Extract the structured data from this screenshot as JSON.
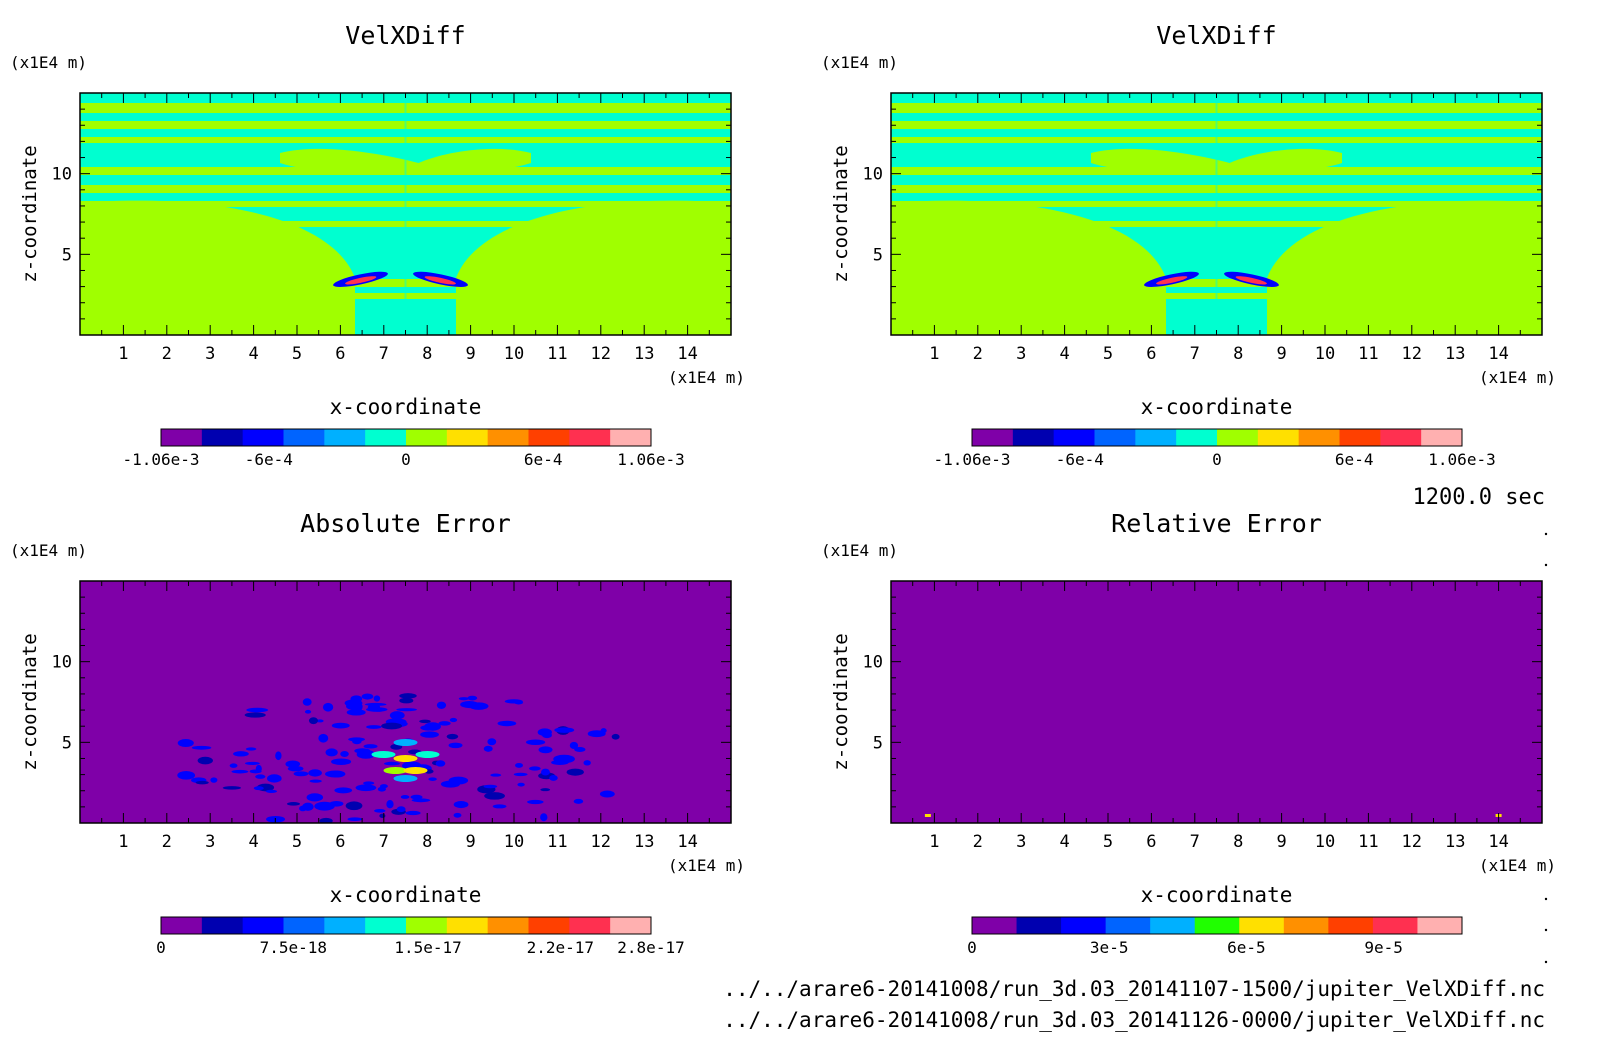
{
  "time_label": "1200.0 sec",
  "files": [
    "../../arare6-20141008/run_3d.03_20141107-1500/jupiter_VelXDiff.nc",
    "../../arare6-20141008/run_3d.03_20141126-0000/jupiter_VelXDiff.nc"
  ],
  "colors": {
    "purple": "#7f00a8",
    "darkblue": "#0000b0",
    "blue": "#0000ff",
    "midblue": "#0064ff",
    "skyblue": "#00b0ff",
    "cyan": "#00ffd0",
    "green": "#a0ff00",
    "brightgreen": "#20ff00",
    "yellow": "#ffe000",
    "orange": "#ff9000",
    "redorange": "#ff4000",
    "red": "#ff3050",
    "pink": "#ffb0b0"
  },
  "chart_data": [
    {
      "type": "heatmap",
      "title": "VelXDiff",
      "xlabel": "x-coordinate",
      "ylabel": "z-coordinate",
      "x_unit": "(x1E4 m)",
      "y_unit": "(x1E4 m)",
      "xlim": [
        0,
        15
      ],
      "ylim": [
        0,
        15
      ],
      "xticks": [
        "1",
        "2",
        "3",
        "4",
        "5",
        "6",
        "7",
        "8",
        "9",
        "10",
        "11",
        "12",
        "13",
        "14"
      ],
      "yticks": [
        "5",
        "10"
      ],
      "colorbar": {
        "colors": [
          "#7f00a8",
          "#0000b0",
          "#0000ff",
          "#0064ff",
          "#00b0ff",
          "#00ffd0",
          "#a0ff00",
          "#ffe000",
          "#ff9000",
          "#ff4000",
          "#ff3050",
          "#ffb0b0"
        ],
        "labels": [
          "-1.06e-3",
          "-6e-4",
          "0",
          "6e-4",
          "1.06e-3"
        ]
      },
      "background": "#00ffd0"
    },
    {
      "type": "heatmap",
      "title": "VelXDiff",
      "xlabel": "x-coordinate",
      "ylabel": "z-coordinate",
      "x_unit": "(x1E4 m)",
      "y_unit": "(x1E4 m)",
      "xlim": [
        0,
        15
      ],
      "ylim": [
        0,
        15
      ],
      "xticks": [
        "1",
        "2",
        "3",
        "4",
        "5",
        "6",
        "7",
        "8",
        "9",
        "10",
        "11",
        "12",
        "13",
        "14"
      ],
      "yticks": [
        "5",
        "10"
      ],
      "colorbar": {
        "colors": [
          "#7f00a8",
          "#0000b0",
          "#0000ff",
          "#0064ff",
          "#00b0ff",
          "#00ffd0",
          "#a0ff00",
          "#ffe000",
          "#ff9000",
          "#ff4000",
          "#ff3050",
          "#ffb0b0"
        ],
        "labels": [
          "-1.06e-3",
          "-6e-4",
          "0",
          "6e-4",
          "1.06e-3"
        ]
      },
      "background": "#00ffd0"
    },
    {
      "type": "heatmap",
      "title": "Absolute Error",
      "xlabel": "x-coordinate",
      "ylabel": "z-coordinate",
      "x_unit": "(x1E4 m)",
      "y_unit": "(x1E4 m)",
      "xlim": [
        0,
        15
      ],
      "ylim": [
        0,
        15
      ],
      "xticks": [
        "1",
        "2",
        "3",
        "4",
        "5",
        "6",
        "7",
        "8",
        "9",
        "10",
        "11",
        "12",
        "13",
        "14"
      ],
      "yticks": [
        "5",
        "10"
      ],
      "colorbar": {
        "colors": [
          "#7f00a8",
          "#0000b0",
          "#0000ff",
          "#0064ff",
          "#00b0ff",
          "#00ffd0",
          "#a0ff00",
          "#ffe000",
          "#ff9000",
          "#ff4000",
          "#ff3050",
          "#ffb0b0"
        ],
        "labels": [
          "0",
          "7.5e-18",
          "1.5e-17",
          "2.2e-17",
          "2.8e-17"
        ]
      },
      "background": "#7f00a8"
    },
    {
      "type": "heatmap",
      "title": "Relative Error",
      "xlabel": "x-coordinate",
      "ylabel": "z-coordinate",
      "x_unit": "(x1E4 m)",
      "y_unit": "(x1E4 m)",
      "xlim": [
        0,
        15
      ],
      "ylim": [
        0,
        15
      ],
      "xticks": [
        "1",
        "2",
        "3",
        "4",
        "5",
        "6",
        "7",
        "8",
        "9",
        "10",
        "11",
        "12",
        "13",
        "14"
      ],
      "yticks": [
        "5",
        "10"
      ],
      "colorbar": {
        "colors": [
          "#7f00a8",
          "#0000b0",
          "#0000ff",
          "#0064ff",
          "#00b0ff",
          "#20ff00",
          "#ffe000",
          "#ff9000",
          "#ff4000",
          "#ff3050",
          "#ffb0b0"
        ],
        "labels": [
          "0",
          "3e-5",
          "6e-5",
          "9e-5"
        ]
      },
      "background": "#7f00a8"
    }
  ]
}
